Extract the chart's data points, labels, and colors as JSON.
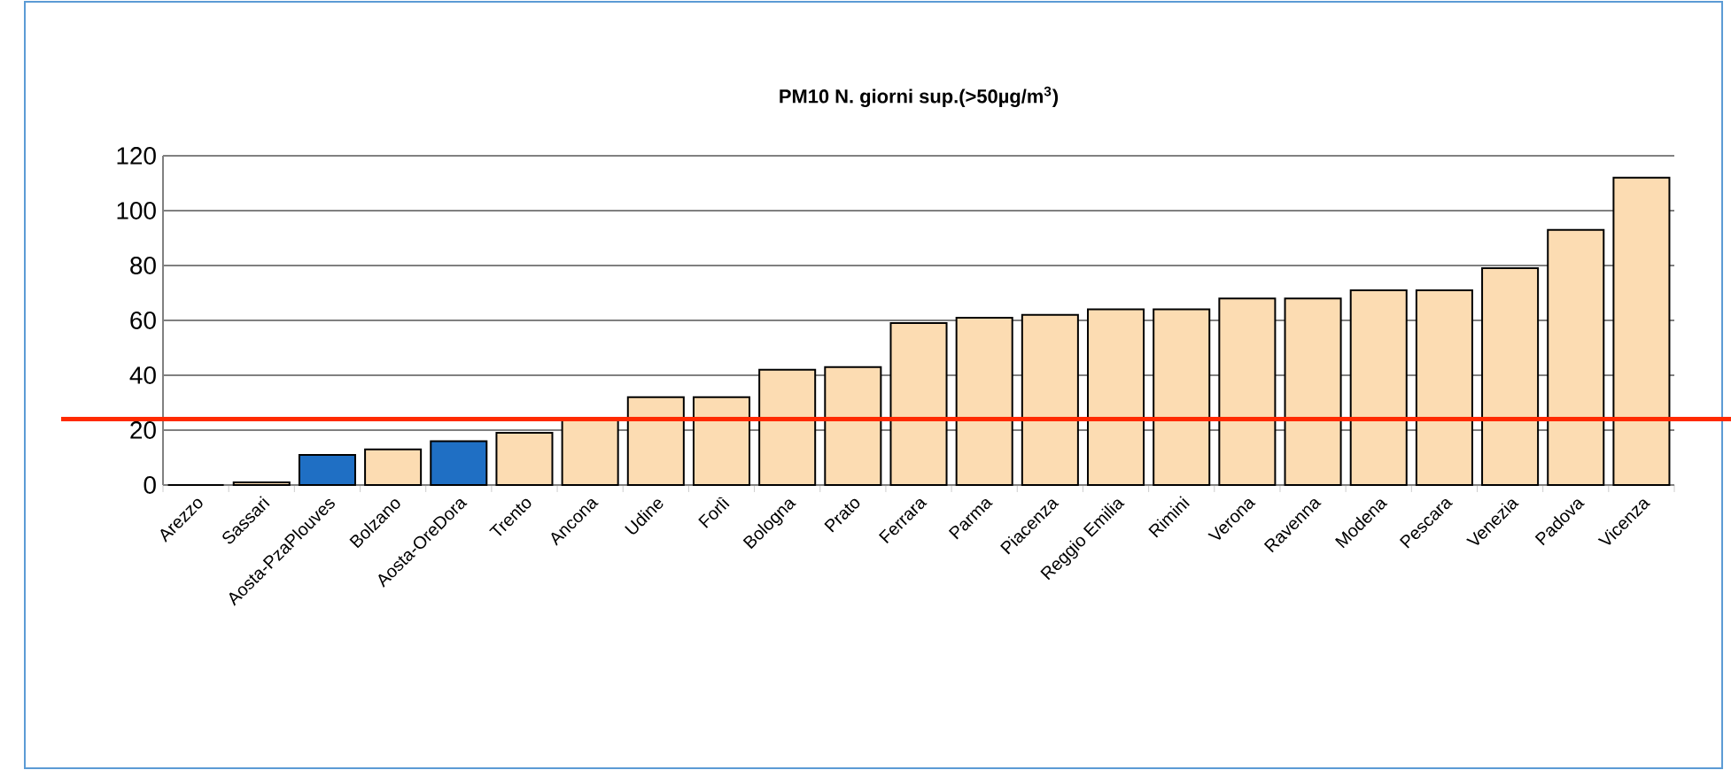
{
  "chart_data": {
    "type": "bar",
    "title": "PM10 N. giorni sup.(>50µg/m$^{3}$)",
    "categories": [
      "Arezzo",
      "Sassari",
      "Aosta-PzaPlouves",
      "Bolzano",
      "Aosta-OreDora",
      "Trento",
      "Ancona",
      "Udine",
      "Forlì",
      "Bologna",
      "Prato",
      "Ferrara",
      "Parma",
      "Piacenza",
      "Reggio Emilia",
      "Rimini",
      "Verona",
      "Ravenna",
      "Modena",
      "Pescara",
      "Venezia",
      "Padova",
      "Vicenza"
    ],
    "values": [
      0,
      1,
      11,
      13,
      16,
      19,
      24,
      32,
      32,
      42,
      43,
      59,
      61,
      62,
      64,
      64,
      68,
      68,
      71,
      71,
      79,
      93,
      112
    ],
    "colors": [
      "#fcdcb2",
      "#fcdcb2",
      "#1f6fc4",
      "#fcdcb2",
      "#1f6fc4",
      "#fcdcb2",
      "#fcdcb2",
      "#fcdcb2",
      "#fcdcb2",
      "#fcdcb2",
      "#fcdcb2",
      "#fcdcb2",
      "#fcdcb2",
      "#fcdcb2",
      "#fcdcb2",
      "#fcdcb2",
      "#fcdcb2",
      "#fcdcb2",
      "#fcdcb2",
      "#fcdcb2",
      "#fcdcb2",
      "#fcdcb2",
      "#fcdcb2"
    ],
    "ylim": [
      0,
      120
    ],
    "yticks": [
      0,
      20,
      40,
      60,
      80,
      100,
      120
    ],
    "grid": "y",
    "ref_lines": [
      {
        "axis": "y",
        "value": 24,
        "color": "#ff2a00"
      }
    ]
  }
}
